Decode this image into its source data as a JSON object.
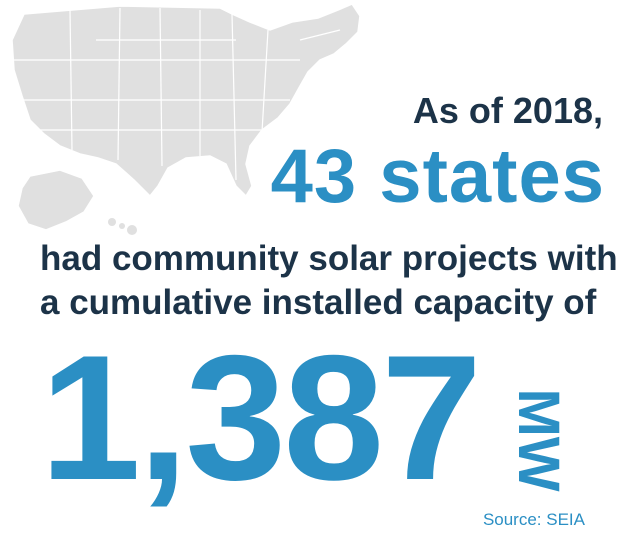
{
  "map": {
    "icon": "us-map-icon",
    "fill_color": "#e0e0e0",
    "highlight_color": "#c9c9c9"
  },
  "headline": {
    "line1": "As of 2018,",
    "line2": "43 states",
    "line3": "had community solar projects with",
    "line4": "a cumulative installed capacity of"
  },
  "capacity": {
    "value": "1,387",
    "unit": "MW"
  },
  "source": "Source: SEIA",
  "colors": {
    "dark": "#1c3348",
    "accent": "#2b8fc4"
  }
}
